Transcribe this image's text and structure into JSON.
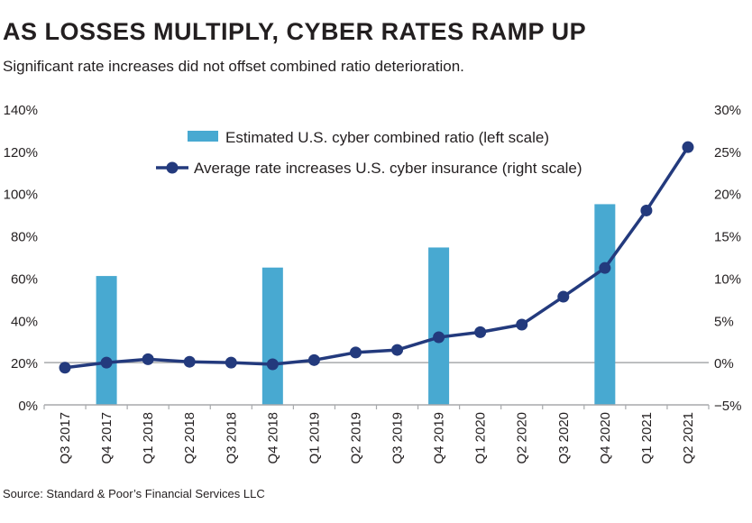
{
  "title": "AS LOSSES MULTIPLY, CYBER RATES RAMP UP",
  "subtitle": "Significant rate increases did not offset combined ratio deterioration.",
  "source": "Source: Standard & Poor’s Financial Services LLC",
  "chart_data": {
    "type": "bar+line",
    "categories": [
      "Q3 2017",
      "Q4 2017",
      "Q1 2018",
      "Q2 2018",
      "Q3 2018",
      "Q4 2018",
      "Q1 2019",
      "Q2 2019",
      "Q3 2019",
      "Q4 2019",
      "Q1 2020",
      "Q2 2020",
      "Q3 2020",
      "Q4 2020",
      "Q1 2021",
      "Q2 2021"
    ],
    "left_axis": {
      "ylim": [
        0,
        140
      ],
      "ticks": [
        0,
        20,
        40,
        60,
        80,
        100,
        120,
        140
      ],
      "tick_labels": [
        "0%",
        "20%",
        "40%",
        "60%",
        "80%",
        "100%",
        "120%",
        "140%"
      ]
    },
    "right_axis": {
      "ylim": [
        -5,
        30
      ],
      "ticks": [
        -5,
        0,
        5,
        10,
        15,
        20,
        25,
        30
      ],
      "tick_labels": [
        "−5%",
        "0%",
        "5%",
        "10%",
        "15%",
        "20%",
        "25%",
        "30%"
      ]
    },
    "grid": "single line at 0% right / 20% left",
    "legend_placement": "top-center",
    "series": [
      {
        "name": "Estimated U.S. cyber combined ratio (left scale)",
        "type": "bar",
        "axis": "left",
        "color": "#48a9d1",
        "values": [
          null,
          61,
          null,
          null,
          null,
          65,
          null,
          null,
          null,
          74.5,
          null,
          null,
          null,
          95,
          null,
          null
        ]
      },
      {
        "name": "Average rate increases U.S. cyber insurance (right scale)",
        "type": "line",
        "axis": "right",
        "color": "#233a7d",
        "values": [
          -0.6,
          0.0,
          0.4,
          0.1,
          0.0,
          -0.2,
          0.3,
          1.2,
          1.5,
          3.0,
          3.6,
          4.5,
          7.8,
          11.2,
          18.0,
          25.5
        ]
      }
    ]
  }
}
